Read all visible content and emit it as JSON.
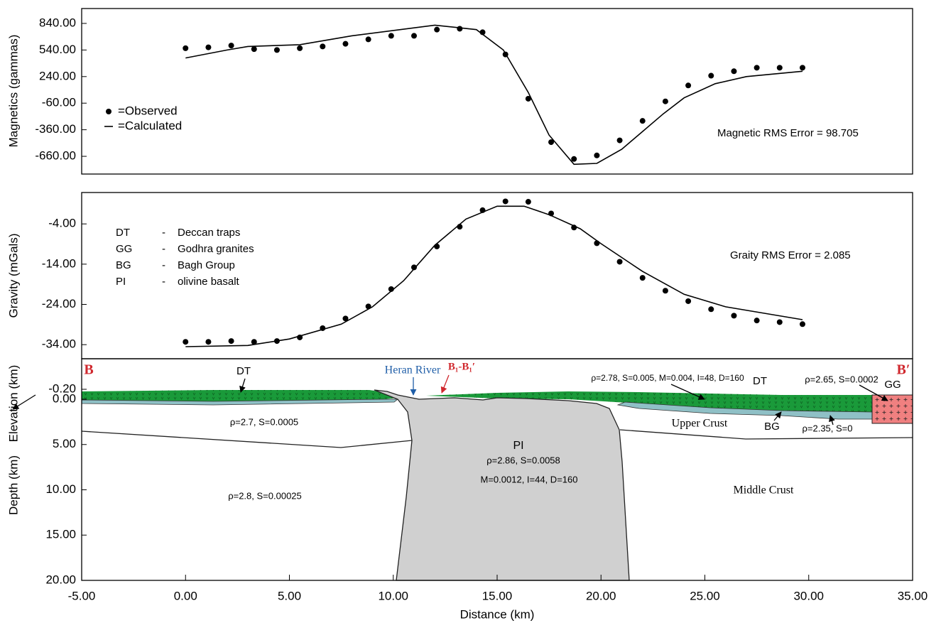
{
  "chart_data": [
    {
      "type": "profile",
      "ylabel": "Magnetics (gammas)",
      "xlim": [
        -5,
        35
      ],
      "ylim": [
        -860,
        1008
      ],
      "yticks": [
        {
          "value": 840,
          "label": "840.00"
        },
        {
          "value": 540,
          "label": "540.00"
        },
        {
          "value": 240,
          "label": "240.00"
        },
        {
          "value": -60,
          "label": "-60.00"
        },
        {
          "value": -360,
          "label": "-360.00"
        },
        {
          "value": -660,
          "label": "-660.00"
        }
      ],
      "legend": true,
      "series": [
        {
          "name": "=Observed",
          "mode": "markers",
          "color": "#000000",
          "x": [
            0,
            1.1,
            2.2,
            3.3,
            4.4,
            5.5,
            6.6,
            7.7,
            8.8,
            9.9,
            11,
            12.1,
            13.2,
            14.3,
            15.4,
            16.5,
            17.6,
            18.7,
            19.8,
            20.9,
            22,
            23.1,
            24.2,
            25.3,
            26.4,
            27.5,
            28.6,
            29.7
          ],
          "values": [
            560,
            570,
            590,
            550,
            540,
            560,
            580,
            610,
            660,
            700,
            700,
            770,
            780,
            740,
            490,
            -10,
            -500,
            -690,
            -650,
            -480,
            -260,
            -40,
            140,
            250,
            300,
            340,
            340,
            340
          ]
        },
        {
          "name": "=Calculated",
          "mode": "lines",
          "color": "#000000",
          "x": [
            0,
            2,
            3,
            5.5,
            8,
            12,
            14,
            15.3,
            16.5,
            17.5,
            18.7,
            19.8,
            21,
            22,
            23,
            24,
            25.5,
            27,
            29.7
          ],
          "values": [
            450,
            540,
            580,
            600,
            700,
            820,
            770,
            540,
            60,
            -420,
            -750,
            -740,
            -580,
            -380,
            -180,
            0,
            160,
            240,
            300
          ]
        }
      ],
      "annotations": [
        {
          "text": "Magnetic RMS Error = 98.705"
        }
      ]
    },
    {
      "type": "profile",
      "ylabel": "Gravity (mGals)",
      "xlim": [
        -5,
        35
      ],
      "ylim": [
        -37.5,
        3.8
      ],
      "yticks": [
        {
          "value": -4,
          "label": "-4.00"
        },
        {
          "value": -14,
          "label": "-14.00"
        },
        {
          "value": -24,
          "label": "-24.00"
        },
        {
          "value": -34,
          "label": "-34.00"
        }
      ],
      "series": [
        {
          "name": "=Observed",
          "mode": "markers",
          "color": "#000000",
          "x": [
            0,
            1.1,
            2.2,
            3.3,
            4.4,
            5.5,
            6.6,
            7.7,
            8.8,
            9.9,
            11,
            12.1,
            13.2,
            14.3,
            15.4,
            16.5,
            17.6,
            18.7,
            19.8,
            20.9,
            22,
            23.1,
            24.2,
            25.3,
            26.4,
            27.5,
            28.6,
            29.7
          ],
          "values": [
            -33.3,
            -33.3,
            -33.1,
            -33.3,
            -33.1,
            -32.2,
            -29.9,
            -27.5,
            -24.5,
            -20.2,
            -14.8,
            -9.6,
            -4.7,
            -0.6,
            1.6,
            1.5,
            -1.4,
            -4.9,
            -8.8,
            -13.4,
            -17.4,
            -20.6,
            -23.2,
            -25.2,
            -26.8,
            -28.0,
            -28.4,
            -28.9
          ]
        },
        {
          "name": "=Calculated",
          "mode": "lines",
          "color": "#000000",
          "x": [
            0,
            3,
            5,
            7.5,
            9,
            10.5,
            12,
            13.5,
            15,
            16.3,
            17.5,
            19,
            20,
            22,
            24,
            26,
            29.7
          ],
          "values": [
            -34.5,
            -34.2,
            -32.6,
            -28.9,
            -24.6,
            -18.1,
            -9.3,
            -2.8,
            0.4,
            0.4,
            -1.7,
            -5.2,
            -8.9,
            -15.8,
            -21.5,
            -24.6,
            -27.8
          ]
        }
      ],
      "formations": [
        {
          "code": "DT",
          "dash": "-",
          "name": "Deccan traps"
        },
        {
          "code": "GG",
          "dash": "-",
          "name": "Godhra granites"
        },
        {
          "code": "BG",
          "dash": "-",
          "name": "Bagh Group"
        },
        {
          "code": "PI",
          "dash": "-",
          "name": "olivine basalt"
        }
      ],
      "annotations": [
        {
          "text": "Graity RMS Error = 2.085"
        }
      ]
    },
    {
      "type": "section",
      "ylabels": [
        "Elevation (km)",
        "Depth (km)"
      ],
      "xlabel": "Distance (km)",
      "xlim": [
        -5,
        35
      ],
      "ylim": [
        -0.8,
        20
      ],
      "xticks": [
        {
          "value": -5,
          "label": "-5.00"
        },
        {
          "value": 0,
          "label": "0.00"
        },
        {
          "value": 5,
          "label": "5.00"
        },
        {
          "value": 10,
          "label": "10.00"
        },
        {
          "value": 15,
          "label": "15.00"
        },
        {
          "value": 20,
          "label": "20.00"
        },
        {
          "value": 25,
          "label": "25.00"
        },
        {
          "value": 30,
          "label": "30.00"
        },
        {
          "value": 35,
          "label": "35.00"
        }
      ],
      "yticks": [
        {
          "value": -0.2,
          "label": "-0.20"
        },
        {
          "value": 0,
          "label": "0.00"
        },
        {
          "value": 5,
          "label": "5.00"
        },
        {
          "value": 10,
          "label": "10.00"
        },
        {
          "value": 15,
          "label": "15.00"
        },
        {
          "value": 20,
          "label": "20.00"
        }
      ],
      "annotations": [
        {
          "text": "B",
          "color": "#d0282e"
        },
        {
          "text": "B′",
          "color": "#d0282e"
        },
        {
          "text": "DT"
        },
        {
          "text": "Heran River",
          "color": "#1f5ea8"
        },
        {
          "text": "B₁-B₁′",
          "color": "#d0282e"
        },
        {
          "text": "ρ=2.78, S=0.005, M=0.004, I=48, D=160"
        },
        {
          "text": "DT"
        },
        {
          "text": "ρ=2.65, S=0.0002"
        },
        {
          "text": "GG"
        },
        {
          "text": "ρ=2.7, S=0.0005"
        },
        {
          "text": "Upper Crust"
        },
        {
          "text": "BG"
        },
        {
          "text": "ρ=2.35, S=0"
        },
        {
          "text": "PI"
        },
        {
          "text": "ρ=2.86, S=0.0058"
        },
        {
          "text": "M=0.0012, I=44, D=160"
        },
        {
          "text": "ρ=2.8, S=0.00025"
        },
        {
          "text": "Middle Crust"
        }
      ]
    }
  ]
}
